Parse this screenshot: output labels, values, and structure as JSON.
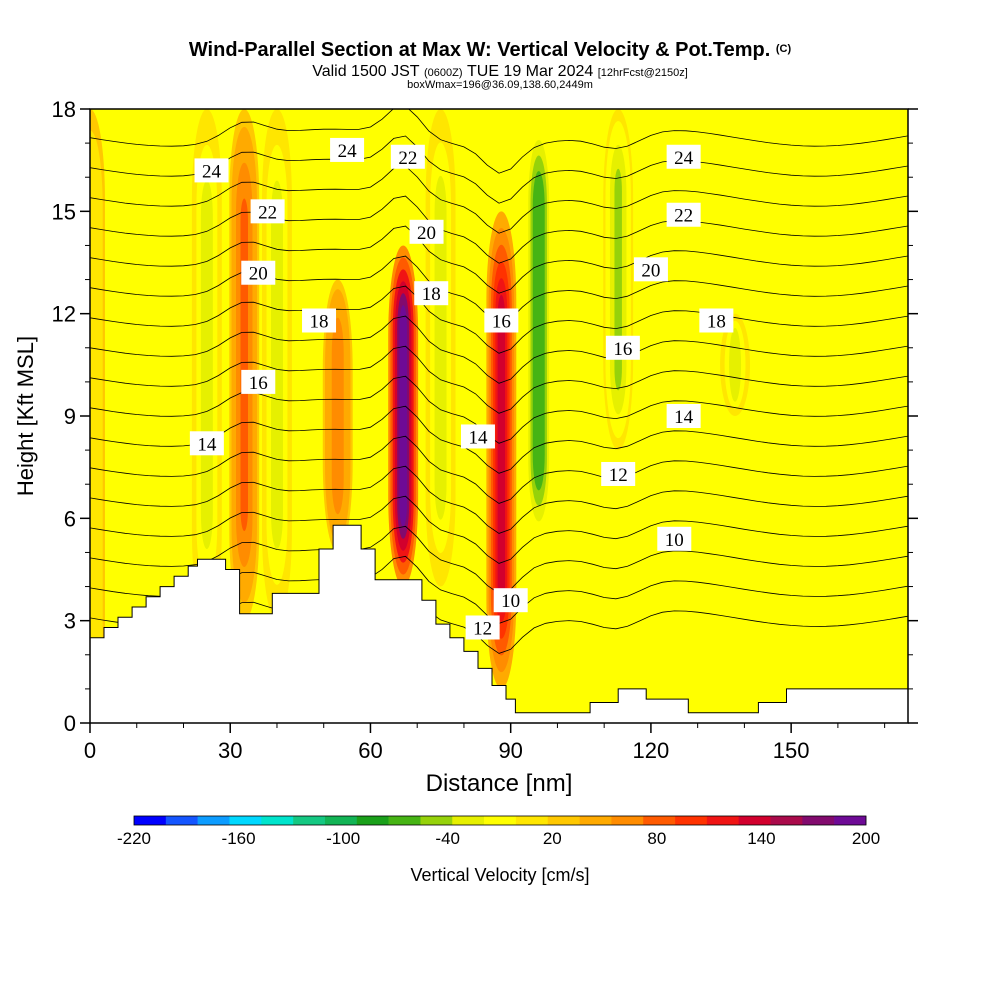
{
  "header": {
    "title": "Wind-Parallel Section at Max W: Vertical Velocity & Pot.Temp.",
    "title_mark": "(C)",
    "subtitle_parts": [
      "Valid 1500 JST",
      "(0600Z)",
      "TUE 19 Mar 2024",
      "[12hrFcst@2150z]"
    ],
    "box_line": "boxWmax=196@36.09,138.60,2449m"
  },
  "chart_data": {
    "type": "heatmap",
    "title": "Wind-Parallel Section at Max W: Vertical Velocity & Pot.Temp.",
    "xlabel": "Distance [nm]",
    "ylabel": "Height [Kft MSL]",
    "xlim": [
      0,
      175
    ],
    "ylim": [
      0,
      18
    ],
    "x_ticks": [
      0,
      30,
      60,
      90,
      120,
      150
    ],
    "y_ticks": [
      0,
      3,
      6,
      9,
      12,
      15,
      18
    ],
    "colorbar": {
      "label": "Vertical Velocity [cm/s]",
      "tick_labels": [
        -220,
        -160,
        -100,
        -40,
        20,
        80,
        140,
        200
      ],
      "colors": [
        "#0000ff",
        "#1455ff",
        "#0c9cff",
        "#00d8ff",
        "#00e4cc",
        "#14c882",
        "#12b455",
        "#1aa01a",
        "#46b414",
        "#96d20a",
        "#e6f000",
        "#ffff00",
        "#ffe600",
        "#ffc800",
        "#ffaa00",
        "#ff8c00",
        "#ff5a00",
        "#ff3200",
        "#f01414",
        "#d2002d",
        "#aa0a4b",
        "#820a6e",
        "#6e0a96"
      ]
    },
    "velocity_features": [
      {
        "x": 0,
        "z": [
          0,
          18
        ],
        "w": 10
      },
      {
        "x": 25,
        "z": [
          3,
          18
        ],
        "w": -30
      },
      {
        "x": 33,
        "z": [
          3,
          18
        ],
        "w": 75
      },
      {
        "x": 40,
        "z": [
          3,
          18
        ],
        "w": -30
      },
      {
        "x": 53,
        "z": [
          5,
          13
        ],
        "w": 60
      },
      {
        "x": 67,
        "z": [
          4,
          14
        ],
        "w": 196
      },
      {
        "x": 75,
        "z": [
          4,
          18
        ],
        "w": -30
      },
      {
        "x": 88,
        "z": [
          1,
          15
        ],
        "w": 130
      },
      {
        "x": 96,
        "z": [
          5,
          18
        ],
        "w": -70
      },
      {
        "x": 113,
        "z": [
          8,
          18
        ],
        "w": -40
      },
      {
        "x": 138,
        "z": [
          9,
          12
        ],
        "w": -30
      }
    ],
    "theta_contours": [
      {
        "label": "10",
        "level": 10,
        "label_at": [
          125,
          5.4
        ]
      },
      {
        "label": "10",
        "level": 10,
        "label_at": [
          90,
          3.6
        ]
      },
      {
        "label": "12",
        "level": 12,
        "label_at": [
          113,
          7.3
        ]
      },
      {
        "label": "12",
        "level": 12,
        "label_at": [
          84,
          2.8
        ]
      },
      {
        "label": "14",
        "level": 14,
        "label_at": [
          127,
          9.0
        ]
      },
      {
        "label": "14",
        "level": 14,
        "label_at": [
          83,
          8.4
        ]
      },
      {
        "label": "14",
        "level": 14,
        "label_at": [
          25,
          8.2
        ]
      },
      {
        "label": "16",
        "level": 16,
        "label_at": [
          114,
          11.0
        ]
      },
      {
        "label": "16",
        "level": 16,
        "label_at": [
          88,
          11.8
        ]
      },
      {
        "label": "16",
        "level": 16,
        "label_at": [
          36,
          10.0
        ]
      },
      {
        "label": "18",
        "level": 18,
        "label_at": [
          134,
          11.8
        ]
      },
      {
        "label": "18",
        "level": 18,
        "label_at": [
          73,
          12.6
        ]
      },
      {
        "label": "18",
        "level": 18,
        "label_at": [
          49,
          11.8
        ]
      },
      {
        "label": "20",
        "level": 20,
        "label_at": [
          120,
          13.3
        ]
      },
      {
        "label": "20",
        "level": 20,
        "label_at": [
          72,
          14.4
        ]
      },
      {
        "label": "20",
        "level": 20,
        "label_at": [
          36,
          13.2
        ]
      },
      {
        "label": "22",
        "level": 22,
        "label_at": [
          127,
          14.9
        ]
      },
      {
        "label": "22",
        "level": 22,
        "label_at": [
          68,
          16.6
        ]
      },
      {
        "label": "22",
        "level": 22,
        "label_at": [
          38,
          15.0
        ]
      },
      {
        "label": "24",
        "level": 24,
        "label_at": [
          127,
          16.6
        ]
      },
      {
        "label": "24",
        "level": 24,
        "label_at": [
          55,
          16.8
        ]
      },
      {
        "label": "24",
        "level": 24,
        "label_at": [
          26,
          16.2
        ]
      }
    ],
    "terrain": [
      [
        0,
        2.5
      ],
      [
        3,
        2.5
      ],
      [
        3,
        2.8
      ],
      [
        6,
        2.8
      ],
      [
        6,
        3.1
      ],
      [
        9,
        3.1
      ],
      [
        9,
        3.4
      ],
      [
        12,
        3.4
      ],
      [
        12,
        3.7
      ],
      [
        15,
        3.7
      ],
      [
        15,
        4.0
      ],
      [
        18,
        4.0
      ],
      [
        18,
        4.3
      ],
      [
        21,
        4.3
      ],
      [
        21,
        4.6
      ],
      [
        23,
        4.6
      ],
      [
        23,
        4.8
      ],
      [
        29,
        4.8
      ],
      [
        29,
        4.5
      ],
      [
        32,
        4.5
      ],
      [
        32,
        3.2
      ],
      [
        39,
        3.2
      ],
      [
        39,
        3.8
      ],
      [
        49,
        3.8
      ],
      [
        49,
        5.1
      ],
      [
        52,
        5.1
      ],
      [
        52,
        5.8
      ],
      [
        58,
        5.8
      ],
      [
        58,
        5.1
      ],
      [
        61,
        5.1
      ],
      [
        61,
        4.2
      ],
      [
        71,
        4.2
      ],
      [
        71,
        3.6
      ],
      [
        74,
        3.6
      ],
      [
        74,
        2.9
      ],
      [
        77,
        2.9
      ],
      [
        77,
        2.5
      ],
      [
        80,
        2.5
      ],
      [
        80,
        2.1
      ],
      [
        83,
        2.1
      ],
      [
        83,
        1.6
      ],
      [
        86,
        1.6
      ],
      [
        86,
        1.1
      ],
      [
        89,
        1.1
      ],
      [
        89,
        0.7
      ],
      [
        91,
        0.7
      ],
      [
        91,
        0.3
      ],
      [
        107,
        0.3
      ],
      [
        107,
        0.6
      ],
      [
        113,
        0.6
      ],
      [
        113,
        1.0
      ],
      [
        119,
        1.0
      ],
      [
        119,
        0.7
      ],
      [
        128,
        0.7
      ],
      [
        128,
        0.3
      ],
      [
        143,
        0.3
      ],
      [
        143,
        0.6
      ],
      [
        149,
        0.6
      ],
      [
        149,
        1.0
      ],
      [
        175,
        1.0
      ]
    ]
  }
}
